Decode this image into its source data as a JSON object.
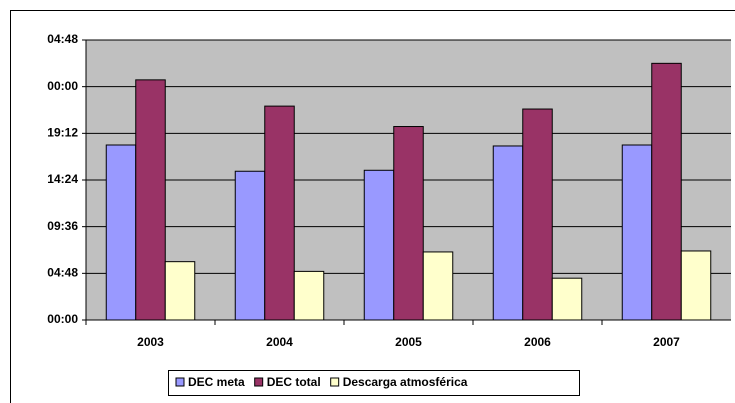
{
  "chart_data": {
    "type": "bar",
    "categories": [
      "2003",
      "2004",
      "2005",
      "2006",
      "2007"
    ],
    "series": [
      {
        "name": "DEC meta",
        "color": "#9999ff",
        "values": [
          18.0,
          15.3,
          15.4,
          17.9,
          18.0
        ]
      },
      {
        "name": "DEC total",
        "color": "#993366",
        "values": [
          24.7,
          22.0,
          19.9,
          21.7,
          26.4
        ]
      },
      {
        "name": "Descarga atmosférica",
        "color": "#ffffcc",
        "values": [
          6.0,
          5.0,
          7.0,
          4.3,
          7.1
        ]
      }
    ],
    "ylim": [
      0,
      28.8
    ],
    "yticks": [
      {
        "value": 0,
        "label": "00:00"
      },
      {
        "value": 4.8,
        "label": "04:48"
      },
      {
        "value": 9.6,
        "label": "09:36"
      },
      {
        "value": 14.4,
        "label": "14:24"
      },
      {
        "value": 19.2,
        "label": "19:12"
      },
      {
        "value": 24,
        "label": "00:00"
      },
      {
        "value": 28.8,
        "label": "04:48"
      }
    ],
    "grid": true,
    "legend": "bottom",
    "plot_background": "#c0c0c0"
  }
}
